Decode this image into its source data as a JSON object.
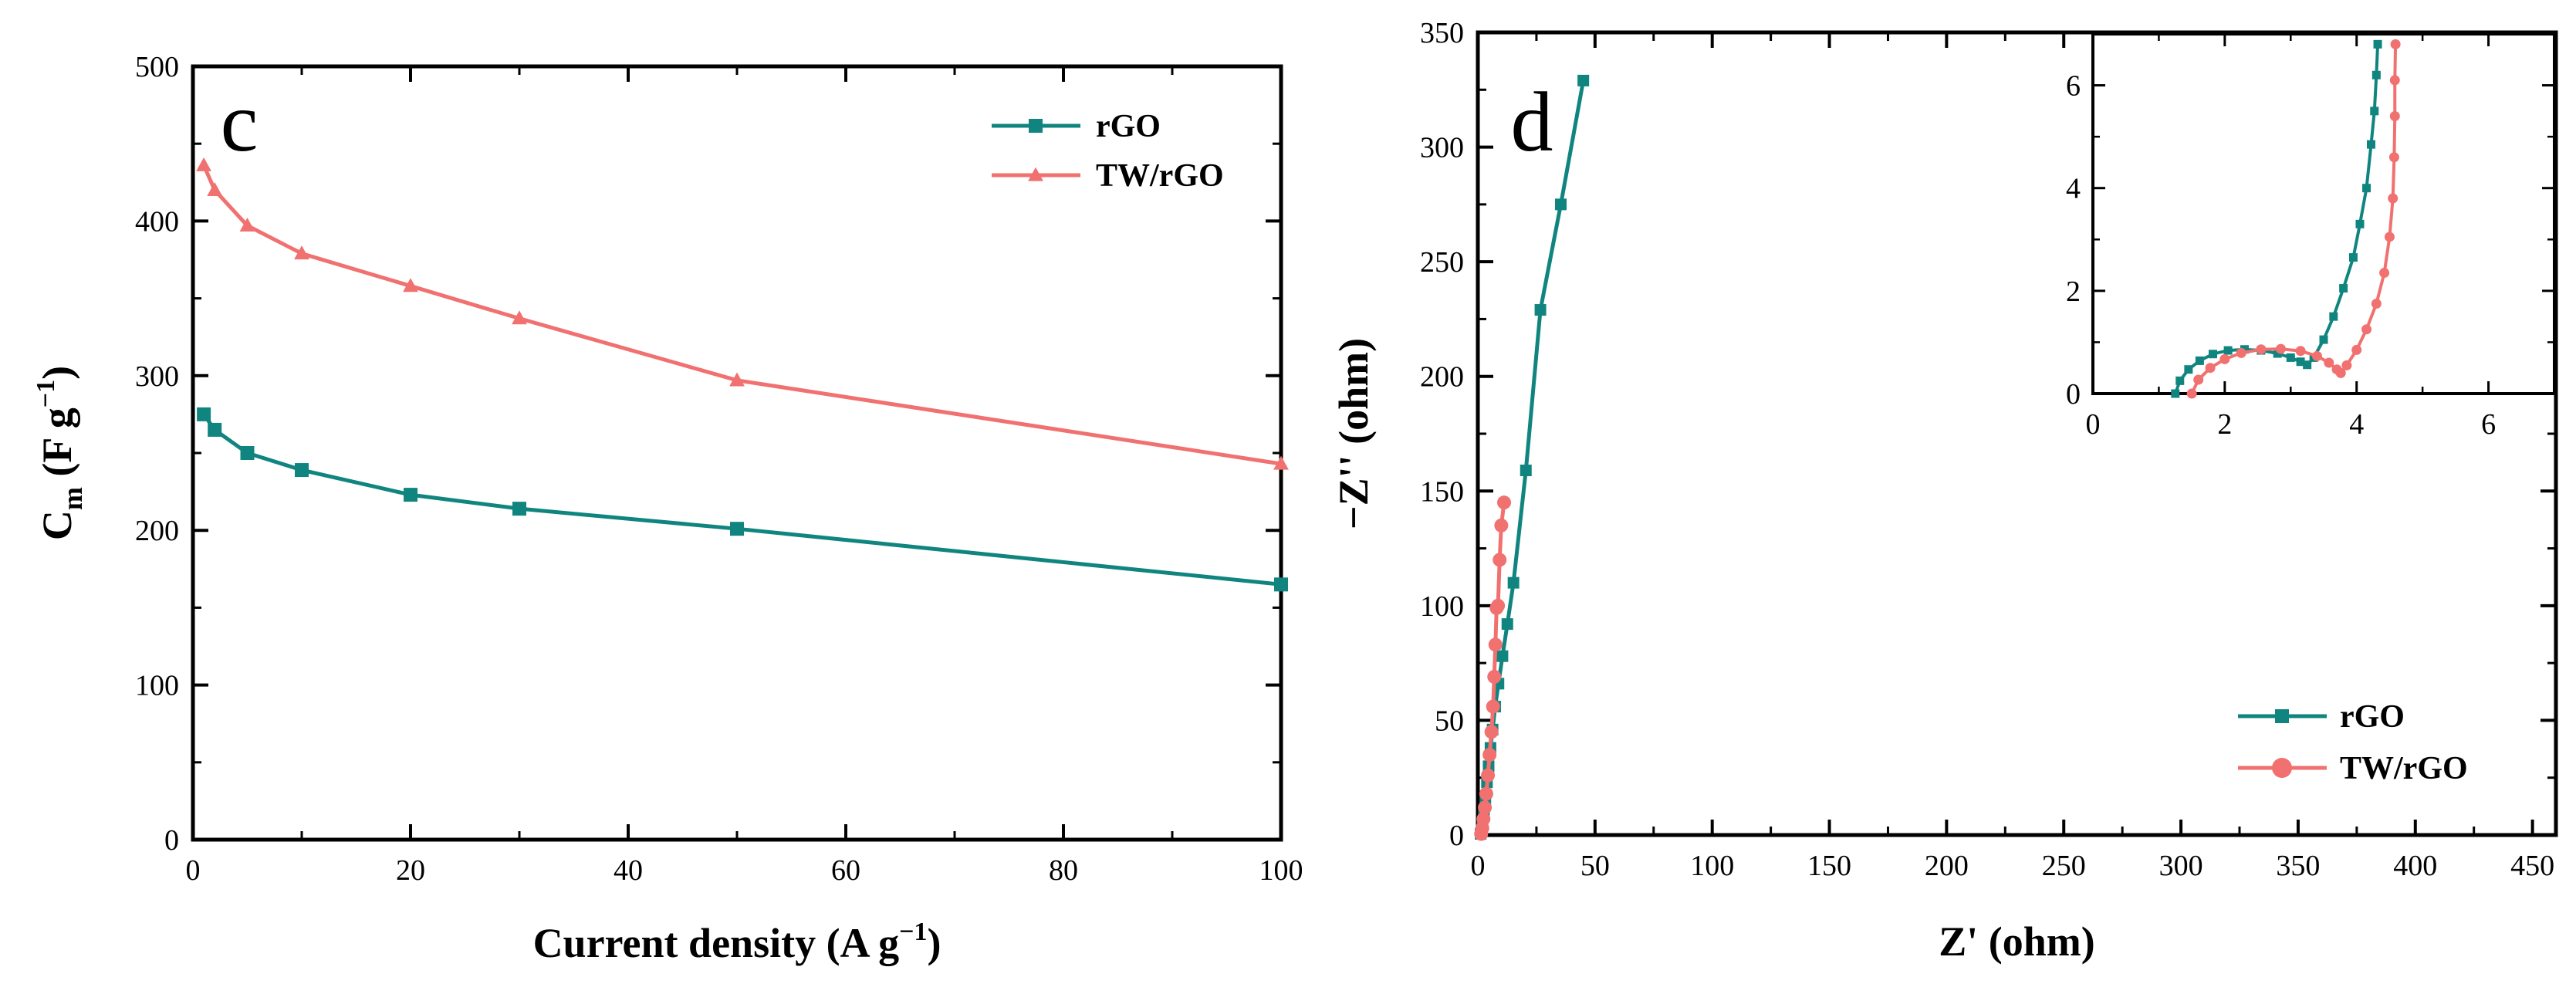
{
  "colors": {
    "rgo": "#10857f",
    "twrgo": "#f0716f",
    "axis": "#000000"
  },
  "chart_data": [
    {
      "type": "line",
      "panel_label": "c",
      "xlabel": "Current density (A g",
      "xlabel_sup": "−1",
      "xlabel_end": ")",
      "ylabel_main": "C",
      "ylabel_sub": "m",
      "ylabel_rest": " (F g",
      "ylabel_sup": "−1",
      "ylabel_end": ")",
      "xlim": [
        0,
        100
      ],
      "ylim": [
        0,
        500
      ],
      "xticks": [
        "0",
        "20",
        "40",
        "60",
        "80",
        "100"
      ],
      "yticks": [
        "0",
        "100",
        "200",
        "300",
        "400",
        "500"
      ],
      "legend_position": "top-right",
      "series": [
        {
          "name": "rGO",
          "marker": "square",
          "x": [
            1,
            2,
            5,
            10,
            20,
            30,
            50,
            100
          ],
          "y": [
            275,
            265,
            250,
            239,
            223,
            214,
            201,
            165
          ]
        },
        {
          "name": "TW/rGO",
          "marker": "triangle",
          "x": [
            1,
            2,
            5,
            10,
            20,
            30,
            50,
            100
          ],
          "y": [
            436,
            420,
            397,
            379,
            358,
            337,
            297,
            243
          ]
        }
      ]
    },
    {
      "type": "line",
      "panel_label": "d",
      "xlabel": "Z' (ohm)",
      "ylabel": "−Z'' (ohm)",
      "xlim": [
        0,
        460
      ],
      "ylim": [
        0,
        350
      ],
      "xticks": [
        "0",
        "50",
        "100",
        "150",
        "200",
        "250",
        "300",
        "350",
        "400",
        "450"
      ],
      "yticks": [
        "0",
        "50",
        "100",
        "150",
        "200",
        "250",
        "300",
        "350"
      ],
      "legend_position": "bottom-right",
      "series": [
        {
          "name": "rGO",
          "marker": "square",
          "x": [
            1.2,
            1.6,
            2.0,
            2.6,
            3.2,
            3.9,
            4.6,
            5.4,
            6.3,
            7.4,
            8.8,
            10.5,
            12.6,
            15.2,
            20.5,
            26.7,
            35.4,
            45
          ],
          "y": [
            0.5,
            2,
            5,
            10,
            16,
            23,
            30,
            38,
            46,
            56,
            66,
            78,
            92,
            110,
            159,
            229,
            275,
            329
          ]
        },
        {
          "name": "TW/rGO",
          "marker": "circle",
          "x": [
            1.4,
            1.9,
            2.4,
            3.0,
            3.6,
            4.3,
            5.0,
            5.8,
            6.5,
            7.0,
            7.5,
            8.0,
            8.6,
            9.3,
            10.0,
            11.2
          ],
          "y": [
            0.5,
            3,
            7,
            12,
            18,
            26,
            35,
            45,
            56,
            69,
            83,
            99,
            100,
            120,
            135,
            145
          ]
        }
      ],
      "inset": {
        "xlim": [
          0,
          7
        ],
        "ylim": [
          0,
          7
        ],
        "xticks": [
          "0",
          "2",
          "4",
          "6"
        ],
        "yticks": [
          "0",
          "2",
          "4",
          "6"
        ],
        "series": [
          {
            "name": "rGO",
            "x": [
              1.25,
              1.32,
              1.45,
              1.62,
              1.82,
              2.05,
              2.3,
              2.55,
              2.8,
              3.0,
              3.15,
              3.25,
              3.35,
              3.5,
              3.65,
              3.8,
              3.95,
              4.05,
              4.15,
              4.22,
              4.27,
              4.3,
              4.32
            ],
            "y": [
              0.0,
              0.25,
              0.47,
              0.64,
              0.77,
              0.84,
              0.86,
              0.84,
              0.78,
              0.7,
              0.62,
              0.56,
              0.7,
              1.05,
              1.5,
              2.05,
              2.65,
              3.3,
              4.0,
              4.85,
              5.5,
              6.2,
              6.8
            ]
          },
          {
            "name": "TW/rGO",
            "x": [
              1.5,
              1.6,
              1.78,
              2.0,
              2.25,
              2.55,
              2.85,
              3.15,
              3.4,
              3.58,
              3.7,
              3.76,
              3.85,
              4.0,
              4.15,
              4.3,
              4.42,
              4.5,
              4.55,
              4.57,
              4.58,
              4.58,
              4.59
            ],
            "y": [
              0.0,
              0.27,
              0.5,
              0.67,
              0.79,
              0.86,
              0.87,
              0.83,
              0.73,
              0.6,
              0.47,
              0.4,
              0.55,
              0.85,
              1.25,
              1.75,
              2.35,
              3.05,
              3.8,
              4.6,
              5.4,
              6.1,
              6.8
            ]
          }
        ]
      }
    }
  ]
}
